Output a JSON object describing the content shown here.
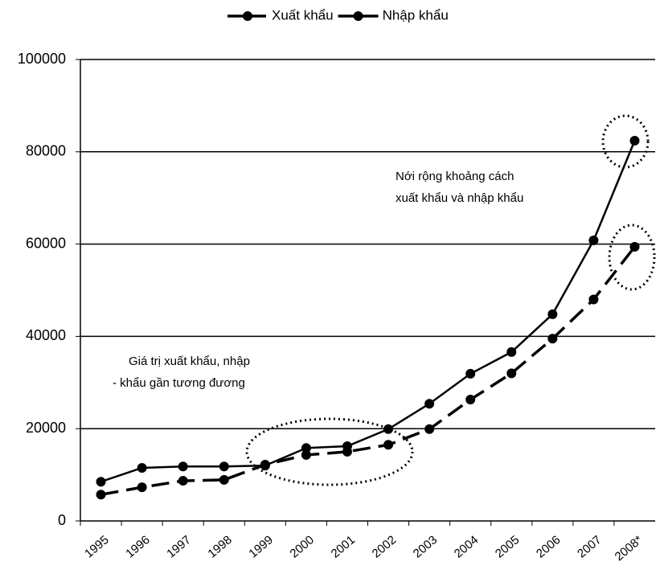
{
  "chart_data": {
    "type": "line",
    "categories": [
      "1995",
      "1996",
      "1997",
      "1998",
      "1999",
      "2000",
      "2001",
      "2002",
      "2003",
      "2004",
      "2005",
      "2006",
      "2007",
      "2008*"
    ],
    "series": [
      {
        "name": "Xuất khẩu",
        "color": "#000000",
        "line_style": "dashed",
        "values": [
          5700,
          7300,
          8700,
          8900,
          12200,
          14300,
          15000,
          16500,
          19900,
          26300,
          32000,
          39500,
          48000,
          59400
        ]
      },
      {
        "name": "Nhập khẩu",
        "color": "#000000",
        "line_style": "solid",
        "values": [
          8500,
          11500,
          11800,
          11800,
          12000,
          15800,
          16200,
          19900,
          25400,
          31900,
          36600,
          44800,
          60800,
          82400
        ]
      }
    ],
    "ylim": [
      0,
      100000
    ],
    "yticks": [
      0,
      20000,
      40000,
      60000,
      80000,
      100000
    ],
    "grid": true,
    "legend": "top",
    "annotations": [
      {
        "lines": [
          "Nới rộng khoảng cách",
          "xuất khẩu và nhập khẩu"
        ]
      },
      {
        "lines": [
          "Giá trị xuất khẩu, nhập",
          "- khẩu gần tương đương"
        ]
      }
    ]
  }
}
